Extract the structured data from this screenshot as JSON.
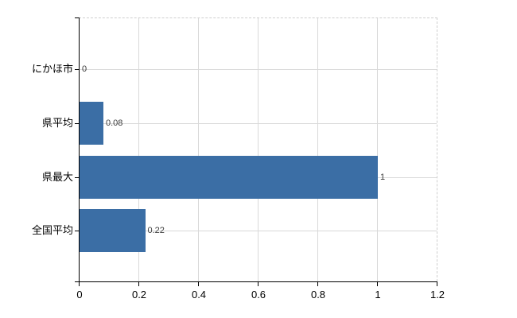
{
  "chart_data": {
    "type": "bar",
    "orientation": "horizontal",
    "title": "",
    "xlabel": "",
    "ylabel": "",
    "categories": [
      "にかほ市",
      "県平均",
      "県最大",
      "全国平均"
    ],
    "values": [
      0,
      0.08,
      1,
      0.22
    ],
    "data_labels": [
      "0",
      "0.08",
      "1",
      "0.22"
    ],
    "x_tick_labels": [
      "0",
      "0.2",
      "0.4",
      "0.6",
      "0.8",
      "1",
      "1.2"
    ],
    "xlim": [
      0,
      1.2
    ],
    "grid": true,
    "legend": false,
    "bar_color": "#3b6ea5",
    "gridline_color": "#d9d9d9",
    "axis_color": "#000000",
    "data_label_color": "#3c3c3c",
    "plot_border_style": "dashed-top-right"
  }
}
